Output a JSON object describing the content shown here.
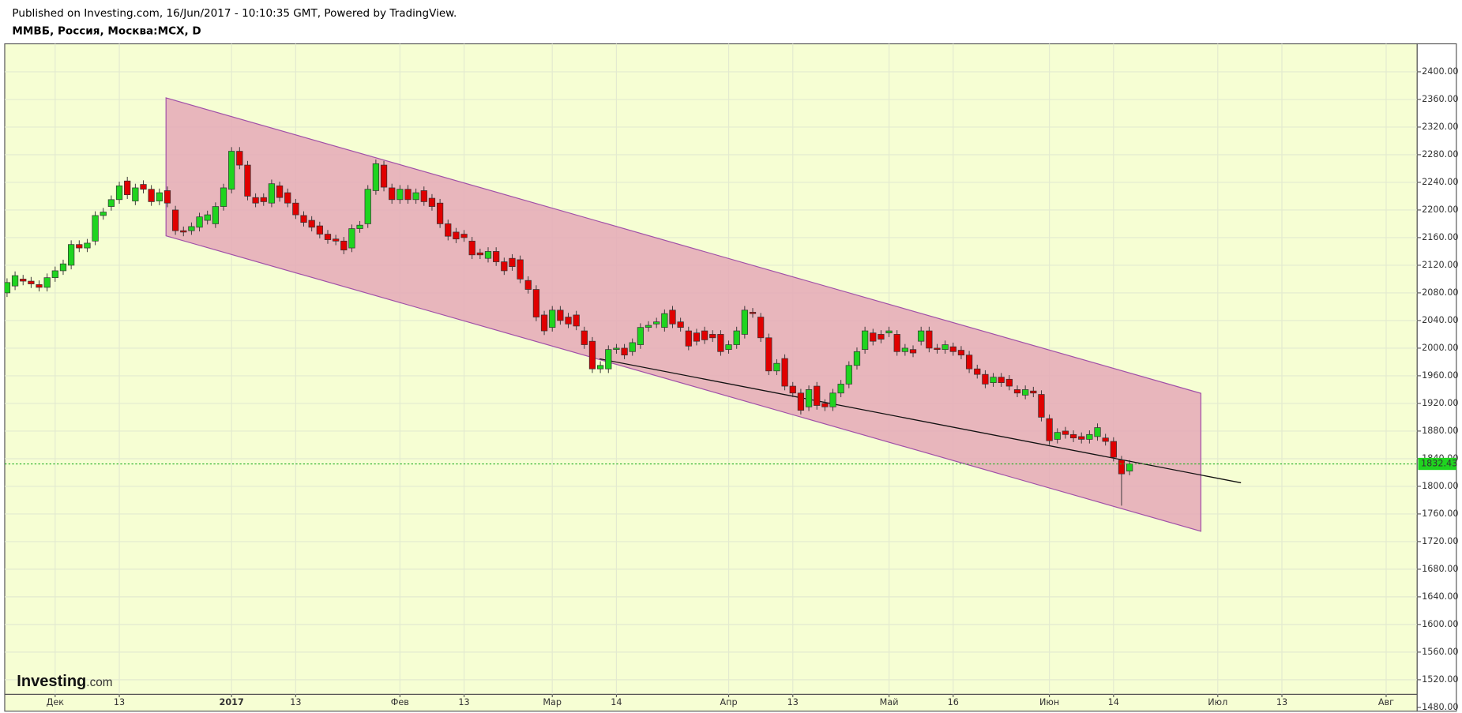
{
  "header": {
    "published": "Published on Investing.com, 16/Jun/2017 - 10:10:35 GMT, Powered by TradingView.",
    "symbol": "ММВБ, Россия, Москва:MCX, D"
  },
  "logo": {
    "main": "Investing",
    "suffix": ".com"
  },
  "chart_data": {
    "type": "candlestick",
    "up_color": "#1fd41f",
    "down_color": "#e00000",
    "ylim": [
      1460,
      2440
    ],
    "yticks": [
      {
        "value": 1480,
        "label": "1480.00"
      },
      {
        "value": 1520,
        "label": "1520.00"
      },
      {
        "value": 1560,
        "label": "1560.00"
      },
      {
        "value": 1600,
        "label": "1600.00"
      },
      {
        "value": 1640,
        "label": "1640.00"
      },
      {
        "value": 1680,
        "label": "1680.00"
      },
      {
        "value": 1720,
        "label": "1720.00"
      },
      {
        "value": 1760,
        "label": "1760.00"
      },
      {
        "value": 1800,
        "label": "1800.00"
      },
      {
        "value": 1840,
        "label": "1840.00"
      },
      {
        "value": 1880,
        "label": "1880.00"
      },
      {
        "value": 1920,
        "label": "1920.00"
      },
      {
        "value": 1960,
        "label": "1960.00"
      },
      {
        "value": 2000,
        "label": "2000.00"
      },
      {
        "value": 2040,
        "label": "2040.00"
      },
      {
        "value": 2080,
        "label": "2080.00"
      },
      {
        "value": 2120,
        "label": "2120.00"
      },
      {
        "value": 2160,
        "label": "2160.00"
      },
      {
        "value": 2200,
        "label": "2200.00"
      },
      {
        "value": 2240,
        "label": "2240.00"
      },
      {
        "value": 2280,
        "label": "2280.00"
      },
      {
        "value": 2320,
        "label": "2320.00"
      },
      {
        "value": 2360,
        "label": "2360.00"
      },
      {
        "value": 2400,
        "label": "2400.00"
      }
    ],
    "grid": true,
    "categories": [
      null,
      null,
      null,
      null,
      null,
      null,
      "Дек",
      null,
      null,
      null,
      null,
      null,
      null,
      null,
      "13",
      null,
      null,
      null,
      null,
      null,
      null,
      null,
      null,
      null,
      null,
      null,
      null,
      null,
      "2017",
      null,
      null,
      null,
      null,
      null,
      null,
      null,
      "13",
      null,
      null,
      null,
      null,
      null,
      null,
      null,
      null,
      null,
      null,
      null,
      null,
      "Фев",
      null,
      null,
      null,
      null,
      null,
      null,
      null,
      "13",
      null,
      null,
      null,
      null,
      null,
      null,
      null,
      null,
      null,
      null,
      "Мар",
      null,
      null,
      null,
      null,
      null,
      null,
      null,
      "14",
      null,
      null,
      null,
      null,
      null,
      null,
      null,
      null,
      null,
      null,
      null,
      null,
      null,
      "Апр",
      null,
      null,
      null,
      null,
      null,
      null,
      null,
      "13",
      null,
      null,
      null,
      null,
      null,
      null,
      null,
      null,
      null,
      null,
      null,
      "Май",
      null,
      null,
      null,
      null,
      null,
      null,
      null,
      "16",
      null,
      null,
      null,
      null,
      null,
      null,
      null,
      null,
      null,
      null,
      null,
      "Июн",
      null,
      null,
      null,
      null,
      null,
      null,
      null,
      "14",
      null,
      null,
      null,
      null,
      null,
      null,
      null,
      null,
      null,
      null,
      null,
      null,
      "Июл",
      null,
      null,
      null,
      null,
      null,
      null,
      null,
      "13",
      null,
      null,
      null,
      null,
      null,
      null,
      null,
      null,
      null,
      null,
      null,
      null,
      "Авг",
      null,
      null,
      null
    ],
    "open": [
      2080,
      2090,
      2100,
      2097,
      2092,
      2088,
      2102,
      2112,
      2120,
      2150,
      2145,
      2155,
      2192,
      2205,
      2215,
      2242,
      2213,
      2237,
      2230,
      2213,
      2228,
      2200,
      2170,
      2170,
      2175,
      2185,
      2180,
      2205,
      2230,
      2285,
      2265,
      2218,
      2218,
      2210,
      2235,
      2225,
      2210,
      2192,
      2185,
      2177,
      2165,
      2158,
      2155,
      2145,
      2173,
      2180,
      2228,
      2265,
      2232,
      2215,
      2230,
      2215,
      2228,
      2217,
      2210,
      2180,
      2168,
      2165,
      2155,
      2138,
      2130,
      2140,
      2125,
      2130,
      2128,
      2098,
      2085,
      2048,
      2030,
      2055,
      2045,
      2048,
      2025,
      2010,
      1970,
      1970,
      1998,
      2000,
      1995,
      2005,
      2030,
      2035,
      2030,
      2055,
      2038,
      2025,
      2022,
      2025,
      2020,
      2020,
      1998,
      2005,
      2020,
      2052,
      2045,
      2015,
      1967,
      1985,
      1945,
      1935,
      1915,
      1945,
      1920,
      1915,
      1935,
      1948,
      1975,
      1998,
      2022,
      2020,
      2022,
      2020,
      1995,
      1998,
      2010,
      2025,
      2000,
      1998,
      2002,
      1997,
      1990,
      1970,
      1962,
      1950,
      1958,
      1955,
      1940,
      1932,
      1938,
      1933,
      1898,
      1868,
      1880,
      1875,
      1872,
      1868,
      1872,
      1870,
      1865,
      1838,
      1822,
      null,
      null,
      null,
      null,
      null,
      null,
      null,
      null,
      null,
      null,
      null,
      null,
      null,
      null,
      null,
      null,
      null,
      null,
      null,
      null,
      null,
      null,
      null,
      null,
      null,
      null,
      null,
      null,
      null,
      null,
      null,
      null,
      null,
      null,
      null
    ],
    "high": [
      2101,
      2111,
      2106,
      2103,
      2098,
      2108,
      2118,
      2128,
      2156,
      2156,
      2158,
      2198,
      2203,
      2221,
      2241,
      2248,
      2238,
      2243,
      2236,
      2231,
      2234,
      2206,
      2176,
      2182,
      2196,
      2199,
      2211,
      2238,
      2291,
      2291,
      2271,
      2224,
      2224,
      2244,
      2241,
      2231,
      2216,
      2198,
      2191,
      2183,
      2171,
      2164,
      2161,
      2179,
      2184,
      2236,
      2273,
      2271,
      2238,
      2236,
      2236,
      2231,
      2234,
      2223,
      2216,
      2186,
      2174,
      2171,
      2161,
      2144,
      2146,
      2146,
      2131,
      2136,
      2134,
      2104,
      2091,
      2054,
      2061,
      2061,
      2051,
      2054,
      2031,
      2016,
      1981,
      2004,
      2006,
      2006,
      2014,
      2036,
      2039,
      2044,
      2056,
      2061,
      2044,
      2031,
      2028,
      2031,
      2026,
      2026,
      2011,
      2031,
      2061,
      2058,
      2051,
      2021,
      1984,
      1991,
      1951,
      1941,
      1946,
      1951,
      1926,
      1941,
      1954,
      1981,
      2001,
      2031,
      2028,
      2026,
      2031,
      2026,
      2006,
      2004,
      2031,
      2031,
      2006,
      2011,
      2008,
      2003,
      1996,
      1976,
      1968,
      1964,
      1964,
      1961,
      1946,
      1946,
      1944,
      1939,
      1904,
      1884,
      1886,
      1881,
      1878,
      1881,
      1891,
      1876,
      1871,
      1844,
      1838,
      null,
      null,
      null,
      null,
      null,
      null,
      null,
      null,
      null,
      null,
      null,
      null,
      null,
      null,
      null,
      null,
      null,
      null,
      null,
      null,
      null,
      null,
      null,
      null,
      null,
      null,
      null,
      null,
      null,
      null,
      null,
      null,
      null,
      null,
      null
    ],
    "low": [
      2074,
      2084,
      2091,
      2087,
      2082,
      2082,
      2096,
      2106,
      2114,
      2139,
      2139,
      2149,
      2186,
      2199,
      2209,
      2216,
      2207,
      2224,
      2206,
      2207,
      2204,
      2164,
      2162,
      2164,
      2169,
      2179,
      2174,
      2199,
      2224,
      2259,
      2214,
      2204,
      2206,
      2204,
      2212,
      2204,
      2187,
      2176,
      2169,
      2159,
      2151,
      2149,
      2136,
      2139,
      2167,
      2174,
      2222,
      2227,
      2209,
      2209,
      2209,
      2209,
      2206,
      2199,
      2174,
      2156,
      2152,
      2154,
      2129,
      2129,
      2124,
      2119,
      2106,
      2112,
      2094,
      2079,
      2039,
      2019,
      2024,
      2034,
      2029,
      2026,
      1999,
      1964,
      1964,
      1964,
      1992,
      1984,
      1989,
      1999,
      2024,
      2029,
      2024,
      2029,
      2024,
      1997,
      2004,
      2006,
      2009,
      1989,
      1992,
      1999,
      2014,
      2044,
      2009,
      1961,
      1961,
      1939,
      1929,
      1904,
      1909,
      1911,
      1909,
      1909,
      1929,
      1942,
      1969,
      1992,
      2004,
      2007,
      2016,
      1989,
      1989,
      1987,
      2004,
      1994,
      1992,
      1992,
      1989,
      1984,
      1964,
      1956,
      1942,
      1944,
      1944,
      1939,
      1929,
      1926,
      1929,
      1894,
      1860,
      1862,
      1869,
      1864,
      1862,
      1862,
      1866,
      1859,
      1836,
      1772,
      1816,
      null,
      null,
      null,
      null,
      null,
      null,
      null,
      null,
      null,
      null,
      null,
      null,
      null,
      null,
      null,
      null,
      null,
      null,
      null,
      null,
      null,
      null,
      null,
      null,
      null,
      null,
      null,
      null,
      null,
      null,
      null,
      null,
      null,
      null,
      null
    ],
    "close": [
      2095,
      2105,
      2097,
      2093,
      2088,
      2102,
      2112,
      2122,
      2150,
      2145,
      2152,
      2192,
      2197,
      2215,
      2235,
      2222,
      2232,
      2230,
      2212,
      2225,
      2210,
      2170,
      2168,
      2176,
      2190,
      2193,
      2205,
      2232,
      2285,
      2265,
      2220,
      2210,
      2212,
      2238,
      2218,
      2210,
      2193,
      2182,
      2175,
      2165,
      2157,
      2155,
      2142,
      2173,
      2178,
      2230,
      2267,
      2233,
      2215,
      2230,
      2215,
      2225,
      2212,
      2205,
      2180,
      2162,
      2158,
      2160,
      2135,
      2135,
      2140,
      2125,
      2112,
      2118,
      2100,
      2085,
      2045,
      2025,
      2055,
      2040,
      2035,
      2032,
      2005,
      1970,
      1975,
      1998,
      2000,
      1990,
      2008,
      2030,
      2033,
      2038,
      2050,
      2035,
      2030,
      2003,
      2010,
      2012,
      2015,
      1995,
      2005,
      2025,
      2055,
      2050,
      2015,
      1967,
      1978,
      1945,
      1935,
      1910,
      1940,
      1917,
      1915,
      1935,
      1948,
      1975,
      1995,
      2025,
      2010,
      2013,
      2025,
      1995,
      2000,
      1993,
      2025,
      2000,
      1998,
      2005,
      1995,
      1990,
      1970,
      1962,
      1948,
      1958,
      1950,
      1945,
      1935,
      1940,
      1935,
      1900,
      1866,
      1878,
      1875,
      1870,
      1868,
      1875,
      1885,
      1865,
      1842,
      1818,
      1832.43,
      null,
      null,
      null,
      null,
      null,
      null,
      null,
      null,
      null,
      null,
      null,
      null,
      null,
      null,
      null,
      null,
      null,
      null,
      null,
      null,
      null,
      null,
      null,
      null,
      null,
      null,
      null,
      null,
      null,
      null,
      null,
      null,
      null,
      null,
      null
    ]
  }
}
